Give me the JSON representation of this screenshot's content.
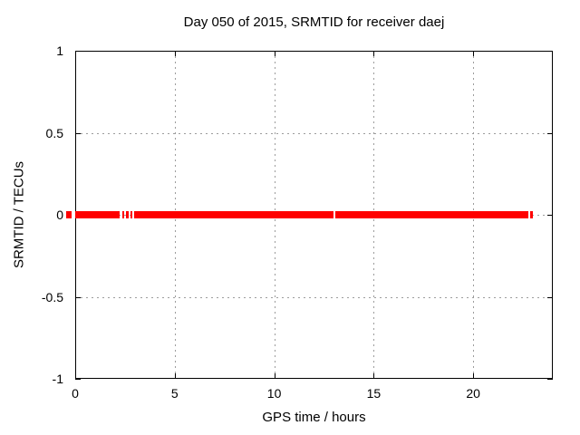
{
  "chart_data": {
    "type": "line",
    "title": "Day 050 of 2015, SRMTID for receiver daej",
    "xlabel": "GPS time / hours",
    "ylabel": "SRMTID / TECUs",
    "xlim": [
      0,
      24
    ],
    "ylim": [
      -1,
      1
    ],
    "x_ticks": [
      {
        "value": 0,
        "label": "0"
      },
      {
        "value": 5,
        "label": "5"
      },
      {
        "value": 10,
        "label": "10"
      },
      {
        "value": 15,
        "label": "15"
      },
      {
        "value": 20,
        "label": "20"
      }
    ],
    "y_ticks": [
      {
        "value": 1,
        "label": "1"
      },
      {
        "value": 0.5,
        "label": "0.5"
      },
      {
        "value": 0,
        "label": "0"
      },
      {
        "value": -0.5,
        "label": "-0.5"
      },
      {
        "value": -1,
        "label": "-1"
      }
    ],
    "grid": true,
    "legend_position": "none",
    "series": [
      {
        "name": "SRMTID",
        "color": "#ff0000",
        "y_value": 0,
        "description": "dense horizontal band of points at SRMTID = 0 TECUs",
        "band_half_width_tecus": 0.022,
        "segments_hours": [
          [
            -0.46,
            -0.18
          ],
          [
            0.0,
            2.25
          ],
          [
            2.35,
            2.48
          ],
          [
            2.57,
            2.71
          ],
          [
            2.8,
            2.89
          ],
          [
            2.98,
            13.0
          ],
          [
            13.09,
            22.77
          ],
          [
            22.86,
            23.0
          ]
        ]
      }
    ],
    "colors": {
      "series": "#ff0000",
      "grid": "#9c9c9c",
      "frame": "#000000",
      "background": "#ffffff",
      "text": "#000000"
    }
  }
}
